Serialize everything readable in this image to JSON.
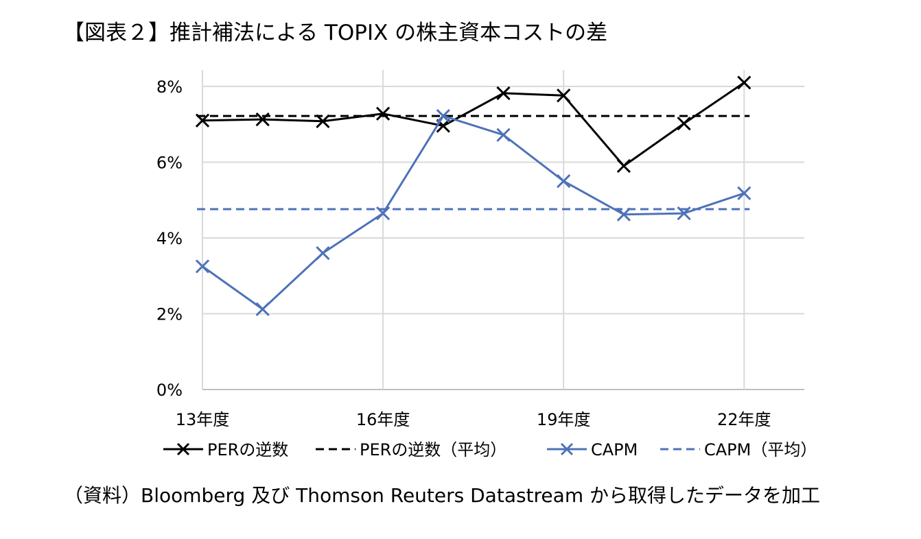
{
  "title": "【図表２】推計補法による TOPIX の株主資本コストの差",
  "source": "（資料）Bloomberg 及び Thomson Reuters Datastream から取得したデータを加工",
  "chart_data": {
    "type": "line",
    "title": "【図表２】推計補法による TOPIX の株主資本コストの差",
    "xlabel": "",
    "ylabel": "",
    "x": [
      "13年度",
      "14年度",
      "15年度",
      "16年度",
      "17年度",
      "18年度",
      "19年度",
      "20年度",
      "21年度",
      "22年度"
    ],
    "x_tick_labels": [
      "13年度",
      "16年度",
      "19年度",
      "22年度"
    ],
    "y_tick_labels": [
      "0%",
      "2%",
      "4%",
      "6%",
      "8%"
    ],
    "ylim": [
      0,
      8
    ],
    "y_unit": "%",
    "grid": true,
    "legend_position": "bottom",
    "series": [
      {
        "name": "PERの逆数",
        "values": [
          7.1,
          7.13,
          7.08,
          7.28,
          6.96,
          7.82,
          7.76,
          5.9,
          7.02,
          8.1
        ],
        "color": "#000000",
        "line_style": "solid",
        "marker": "x"
      },
      {
        "name": "PERの逆数（平均）",
        "values": [
          7.22,
          7.22,
          7.22,
          7.22,
          7.22,
          7.22,
          7.22,
          7.22,
          7.22,
          7.22
        ],
        "color": "#000000",
        "line_style": "dashed",
        "marker": "none"
      },
      {
        "name": "CAPM",
        "values": [
          3.25,
          2.12,
          3.6,
          4.65,
          7.22,
          6.72,
          5.5,
          4.62,
          4.65,
          5.18
        ],
        "color": "#4e72b8",
        "line_style": "solid",
        "marker": "x"
      },
      {
        "name": "CAPM（平均）",
        "values": [
          4.76,
          4.76,
          4.76,
          4.76,
          4.76,
          4.76,
          4.76,
          4.76,
          4.76,
          4.76
        ],
        "color": "#4e72b8",
        "line_style": "dashed",
        "marker": "none"
      }
    ]
  }
}
